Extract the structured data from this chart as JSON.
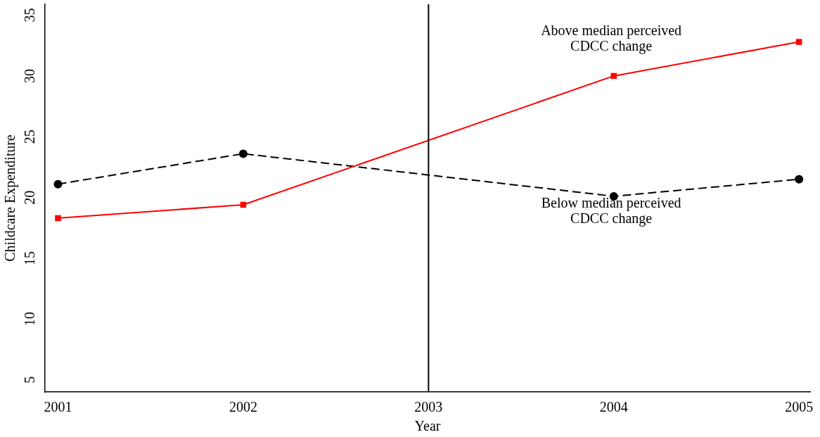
{
  "chart_data": {
    "type": "line",
    "xlabel": "Year",
    "ylabel": "Childcare Expenditure",
    "x": [
      2001,
      2002,
      2003,
      2004,
      2005
    ],
    "series": [
      {
        "color": "#ff0000",
        "values": [
          18.3,
          19.4,
          null,
          30,
          32.8
        ],
        "marker": "square",
        "line_style": "solid"
      },
      {
        "color": "#000000",
        "values": [
          21.1,
          23.6,
          null,
          20.1,
          21.5
        ],
        "marker": "circle",
        "line_style": "dashed"
      }
    ],
    "xlim": [
      2000.93,
      2005.06
    ],
    "ylim": [
      4,
      35.9
    ],
    "xticks": [
      2001,
      2002,
      2003,
      2004,
      2005
    ],
    "yticks": [
      5,
      10,
      15,
      20,
      25,
      30,
      35
    ],
    "ref_lines": [
      {
        "axis": "x",
        "value": 2003,
        "color": "#000000",
        "line_style": "solid"
      }
    ],
    "annotations": [
      "Above median perceived\nCDCC change",
      "Below median perceived\nCDCC change"
    ],
    "grid": false,
    "legend": false
  }
}
